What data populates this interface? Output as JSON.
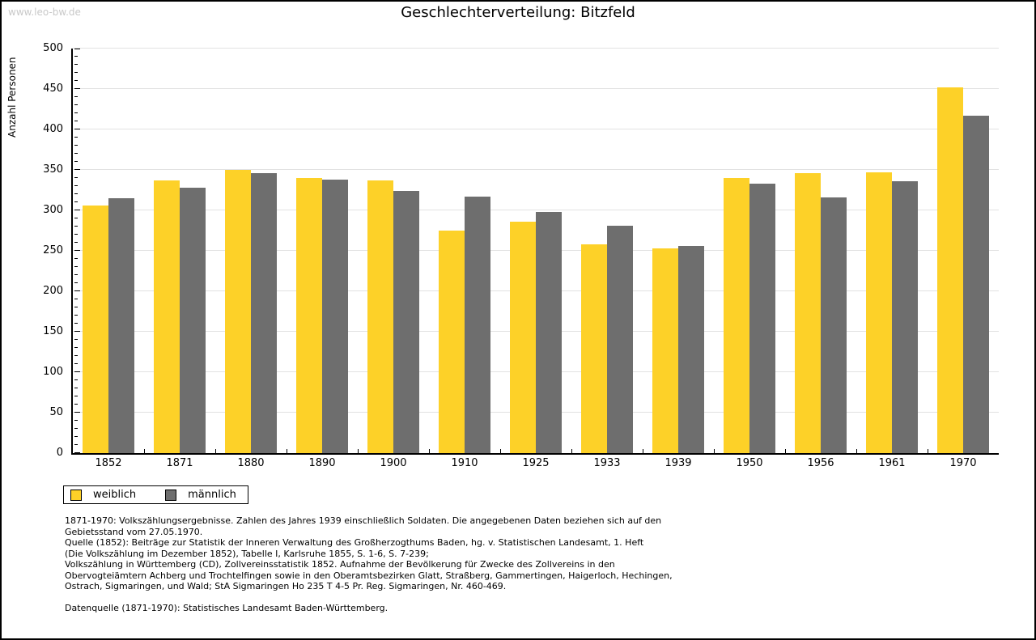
{
  "watermark": "www.leo-bw.de",
  "title": "Geschlechterverteilung: Bitzfeld",
  "chart_data": {
    "type": "bar",
    "title": "Geschlechterverteilung: Bitzfeld",
    "xlabel": "",
    "ylabel": "Anzahl Personen",
    "categories": [
      "1852",
      "1871",
      "1880",
      "1890",
      "1900",
      "1910",
      "1925",
      "1933",
      "1939",
      "1950",
      "1956",
      "1961",
      "1970"
    ],
    "series": [
      {
        "name": "weiblich",
        "color": "#fdd128",
        "values": [
          306,
          337,
          350,
          340,
          337,
          275,
          286,
          258,
          253,
          340,
          346,
          347,
          452
        ]
      },
      {
        "name": "männlich",
        "color": "#6e6e6e",
        "values": [
          315,
          328,
          346,
          338,
          324,
          317,
          298,
          281,
          256,
          333,
          316,
          336,
          417
        ]
      }
    ],
    "ylim": [
      0,
      500
    ],
    "yticks": [
      0,
      50,
      100,
      150,
      200,
      250,
      300,
      350,
      400,
      450,
      500
    ],
    "ytick_minor_step": 10,
    "grid": true,
    "legend_position": "below-left"
  },
  "legend": {
    "items": [
      {
        "label": "weiblich",
        "color": "#fdd128"
      },
      {
        "label": "männlich",
        "color": "#6e6e6e"
      }
    ]
  },
  "footnotes": {
    "lines": [
      "1871-1970: Volkszählungsergebnisse. Zahlen des Jahres 1939 einschließlich Soldaten. Die angegebenen Daten beziehen sich auf den",
      "Gebietsstand vom 27.05.1970.",
      "Quelle (1852): Beiträge zur Statistik der Inneren Verwaltung des Großherzogthums Baden, hg. v. Statistischen Landesamt, 1. Heft",
      "(Die Volkszählung im Dezember 1852), Tabelle I, Karlsruhe 1855, S. 1-6, S. 7-239;",
      "Volkszählung in Württemberg (CD), Zollvereinsstatistik 1852. Aufnahme der Bevölkerung für Zwecke des Zollvereins in den",
      "Obervogteiämtern Achberg und Trochtelfingen sowie in den Oberamtsbezirken Glatt, Straßberg, Gammertingen, Haigerloch, Hechingen,",
      "Ostrach, Sigmaringen, und Wald; StA Sigmaringen Ho 235 T 4-5 Pr. Reg. Sigmaringen, Nr. 460-469.",
      "",
      "Datenquelle (1871-1970): Statistisches Landesamt Baden-Württemberg."
    ]
  },
  "colors": {
    "weiblich": "#fdd128",
    "maennlich": "#6e6e6e",
    "gridline": "#e2e2e2",
    "axis": "#000000",
    "watermark": "#c9c9c9",
    "background": "#ffffff"
  }
}
